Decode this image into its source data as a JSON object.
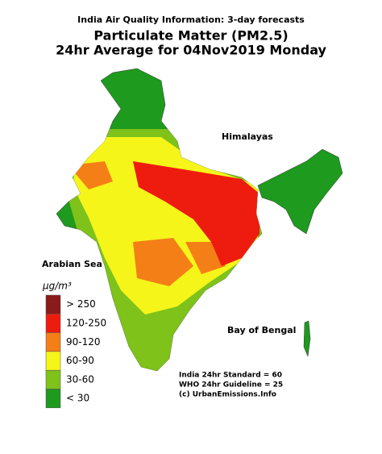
{
  "header": {
    "subtitle": "India Air Quality Information: 3-day forecasts",
    "title": "Particulate Matter (PM2.5)",
    "date_line": "24hr Average for 04Nov2019 Monday"
  },
  "labels": {
    "north": "Himalayas",
    "west": "Arabian Sea",
    "east": "Bay of Bengal"
  },
  "legend": {
    "unit": "µg/m³",
    "items": [
      {
        "label": "> 250",
        "color": "#8b1a1a"
      },
      {
        "label": "120-250",
        "color": "#ee1c0e"
      },
      {
        "label": "90-120",
        "color": "#f57f17"
      },
      {
        "label": "60-90",
        "color": "#f5f51a"
      },
      {
        "label": "30-60",
        "color": "#7ec21a"
      },
      {
        "label": "< 30",
        "color": "#1e9a1e"
      }
    ]
  },
  "notes": [
    "India 24hr Standard = 60",
    "WHO 24hr Guideline = 25",
    "(c) UrbanEmissions.Info"
  ]
}
